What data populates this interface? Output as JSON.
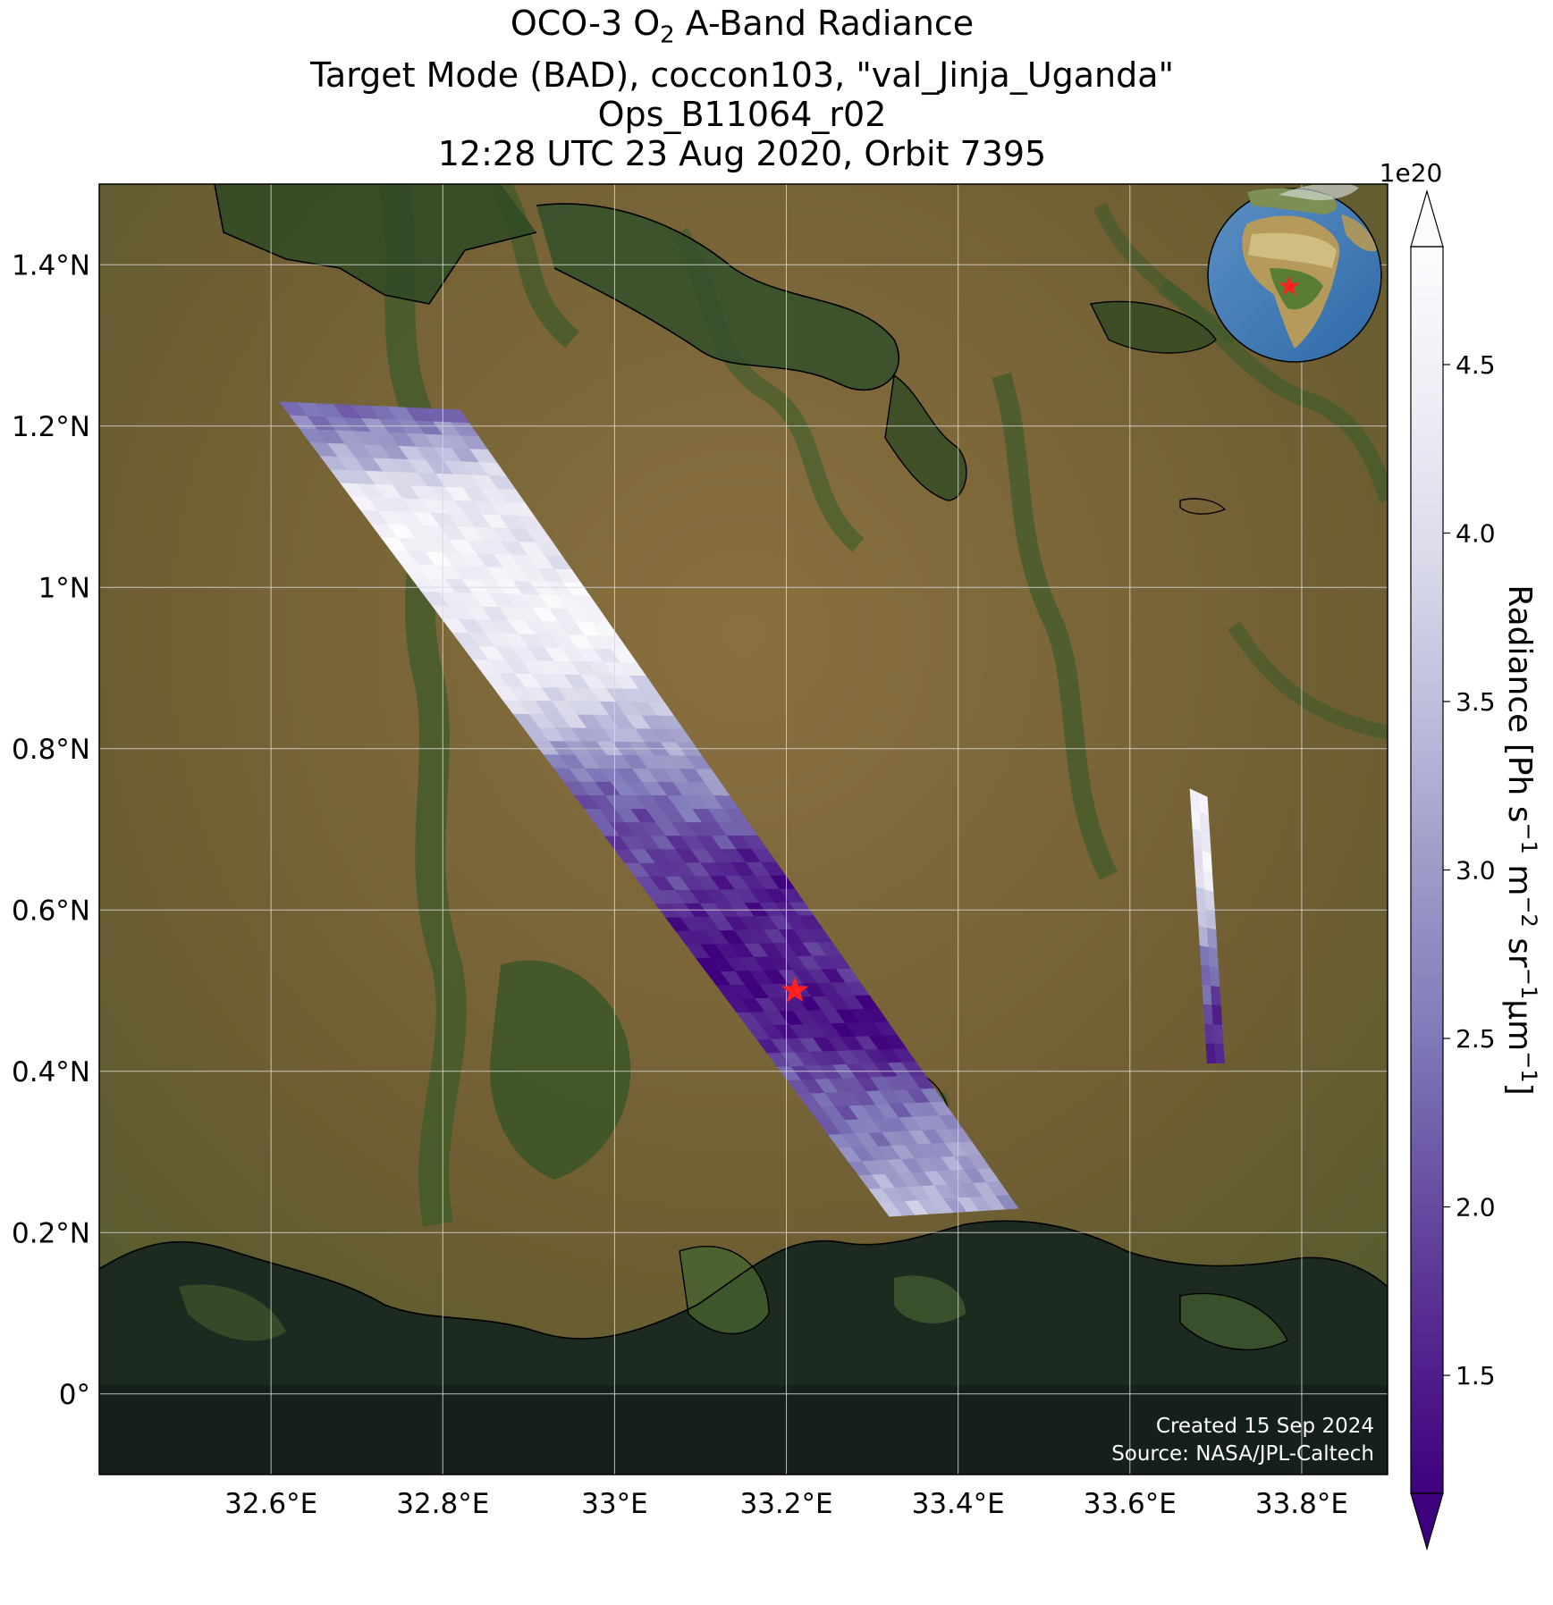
{
  "title": {
    "line1_pre": "OCO-3 O",
    "line1_sub": "2",
    "line1_post": " A-Band Radiance",
    "line2": "Target Mode (BAD), coccon103, \"val_Jinja_Uganda\"",
    "line3": "Ops_B11064_r02",
    "line4": "12:28 UTC 23 Aug 2020, Orbit 7395"
  },
  "map": {
    "lon_range": [
      32.4,
      33.9
    ],
    "lat_range": [
      -0.1,
      1.5
    ],
    "lon_ticks": [
      32.6,
      32.8,
      33.0,
      33.2,
      33.4,
      33.6,
      33.8
    ],
    "lon_tick_labels": [
      "32.6°E",
      "32.8°E",
      "33°E",
      "33.2°E",
      "33.4°E",
      "33.6°E",
      "33.8°E"
    ],
    "lat_ticks": [
      0.0,
      0.2,
      0.4,
      0.6,
      0.8,
      1.0,
      1.2,
      1.4
    ],
    "lat_tick_labels": [
      "0°",
      "0.2°N",
      "0.4°N",
      "0.6°N",
      "0.8°N",
      "1°N",
      "1.2°N",
      "1.4°N"
    ],
    "gridlines": true,
    "target_lon": 33.21,
    "target_lat": 0.5,
    "target_marker": "red-star",
    "inset_globe": "top-right",
    "colors": {
      "target_star": "#ff2020",
      "land": "#7a6a3c",
      "water": "#1f2a20",
      "wetland": "#3a5a2a",
      "coastline": "#000000"
    }
  },
  "colorbar": {
    "label_pre": "Radiance [Ph s",
    "label_mid1": " m",
    "label_mid2": " sr",
    "label_mid3": "μm",
    "label_post": "]",
    "sup_neg1": "−1",
    "sup_neg2": "−2",
    "exponent": "1e20",
    "ticks": [
      1.5,
      2.0,
      2.5,
      3.0,
      3.5,
      4.0,
      4.5
    ],
    "tick_labels": [
      "1.5",
      "2.0",
      "2.5",
      "3.0",
      "3.5",
      "4.0",
      "4.5"
    ],
    "range": [
      1.15,
      4.85
    ],
    "extend": "both",
    "colormap": "Purples_r",
    "colormap_stops": [
      "#3f007d",
      "#54278f",
      "#6a51a3",
      "#807dba",
      "#9e9ac8",
      "#bcbddc",
      "#dadaeb",
      "#efedf5",
      "#fcfbfd"
    ]
  },
  "chart_data": {
    "type": "heatmap",
    "swath_main": {
      "corners_lonlat": [
        [
          32.61,
          1.23
        ],
        [
          32.82,
          1.22
        ],
        [
          33.47,
          0.23
        ],
        [
          33.32,
          0.22
        ]
      ],
      "along_track_radiance_1e20": [
        2.2,
        4.3,
        4.5,
        4.3,
        2.8,
        1.8,
        1.5,
        1.4,
        2.6,
        3.4
      ]
    },
    "swath_small": {
      "corners_lonlat": [
        [
          33.67,
          0.75
        ],
        [
          33.69,
          0.74
        ],
        [
          33.71,
          0.41
        ],
        [
          33.69,
          0.41
        ]
      ],
      "along_track_radiance_1e20": [
        4.5,
        4.2,
        2.3,
        1.4
      ]
    }
  },
  "credits": {
    "created": "Created 15 Sep 2024",
    "source": "Source: NASA/JPL-Caltech"
  }
}
